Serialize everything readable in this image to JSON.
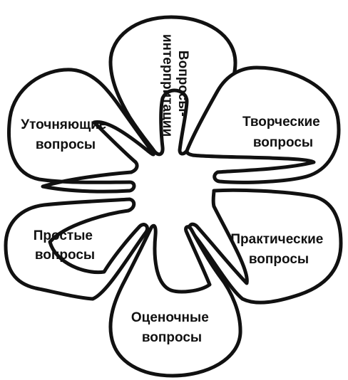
{
  "diagram": {
    "petals": [
      {
        "id": "interpretation",
        "lines": [
          "Вопросы-",
          "интерпритации"
        ]
      },
      {
        "id": "creative",
        "lines": [
          "Творческие",
          "вопросы"
        ]
      },
      {
        "id": "practical",
        "lines": [
          "Практические",
          "вопросы"
        ]
      },
      {
        "id": "evaluative",
        "lines": [
          "Оценочные",
          "вопросы"
        ]
      },
      {
        "id": "simple",
        "lines": [
          "Простые",
          "вопросы"
        ]
      },
      {
        "id": "clarifying",
        "lines": [
          "Уточняющие",
          "вопросы"
        ]
      }
    ]
  }
}
